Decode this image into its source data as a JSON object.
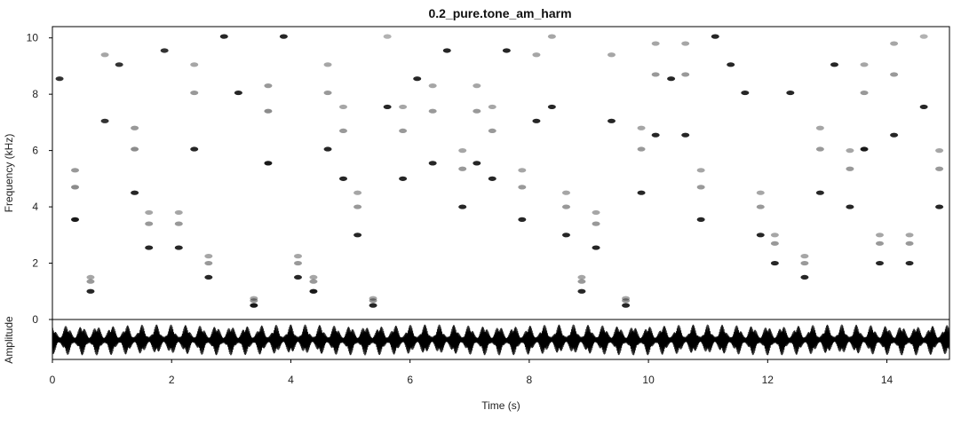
{
  "chart_data": {
    "type": "scatter",
    "title": "0.2_pure.tone_am_harm",
    "xlabel": "Time (s)",
    "ylabel": "Frequency (kHz)",
    "ylabel_waveform": "Amplitude",
    "xlim": [
      0,
      15.05
    ],
    "ylim": [
      0,
      10.4
    ],
    "xticks": [
      0,
      2,
      4,
      6,
      8,
      10,
      12,
      14
    ],
    "yticks": [
      0,
      2,
      4,
      6,
      8,
      10
    ],
    "grid": false,
    "legend": "none",
    "colors": {
      "spectrogram": "#000000",
      "waveform": "#000000",
      "background": "#ffffff"
    },
    "series": [
      {
        "values": [
          {
            "x": 0.12,
            "y": 8.55,
            "i": 0.8
          },
          {
            "x": 0.38,
            "y": 3.55,
            "i": 0.9
          },
          {
            "x": 0.38,
            "y": 4.7,
            "i": 0.45
          },
          {
            "x": 0.38,
            "y": 5.3,
            "i": 0.4
          },
          {
            "x": 0.64,
            "y": 1.0,
            "i": 0.85
          },
          {
            "x": 0.64,
            "y": 1.35,
            "i": 0.4
          },
          {
            "x": 0.64,
            "y": 1.5,
            "i": 0.35
          },
          {
            "x": 0.88,
            "y": 7.05,
            "i": 0.8
          },
          {
            "x": 0.88,
            "y": 9.4,
            "i": 0.35
          },
          {
            "x": 1.12,
            "y": 9.05,
            "i": 0.8
          },
          {
            "x": 1.38,
            "y": 4.5,
            "i": 0.85
          },
          {
            "x": 1.38,
            "y": 6.05,
            "i": 0.45
          },
          {
            "x": 1.38,
            "y": 6.8,
            "i": 0.4
          },
          {
            "x": 1.62,
            "y": 2.55,
            "i": 0.85
          },
          {
            "x": 1.62,
            "y": 3.4,
            "i": 0.4
          },
          {
            "x": 1.62,
            "y": 3.8,
            "i": 0.35
          },
          {
            "x": 1.88,
            "y": 9.55,
            "i": 0.8
          },
          {
            "x": 2.12,
            "y": 2.55,
            "i": 0.85
          },
          {
            "x": 2.12,
            "y": 3.4,
            "i": 0.4
          },
          {
            "x": 2.12,
            "y": 3.8,
            "i": 0.35
          },
          {
            "x": 2.38,
            "y": 6.05,
            "i": 0.85
          },
          {
            "x": 2.38,
            "y": 8.05,
            "i": 0.4
          },
          {
            "x": 2.38,
            "y": 9.05,
            "i": 0.35
          },
          {
            "x": 2.62,
            "y": 1.5,
            "i": 0.85
          },
          {
            "x": 2.62,
            "y": 2.0,
            "i": 0.4
          },
          {
            "x": 2.62,
            "y": 2.25,
            "i": 0.35
          },
          {
            "x": 2.88,
            "y": 10.05,
            "i": 0.85
          },
          {
            "x": 3.12,
            "y": 8.05,
            "i": 0.85
          },
          {
            "x": 3.38,
            "y": 0.5,
            "i": 0.9
          },
          {
            "x": 3.38,
            "y": 0.67,
            "i": 0.4
          },
          {
            "x": 3.38,
            "y": 0.75,
            "i": 0.35
          },
          {
            "x": 3.62,
            "y": 5.55,
            "i": 0.9
          },
          {
            "x": 3.62,
            "y": 7.4,
            "i": 0.45
          },
          {
            "x": 3.62,
            "y": 8.3,
            "i": 0.4
          },
          {
            "x": 3.88,
            "y": 10.05,
            "i": 0.85
          },
          {
            "x": 4.12,
            "y": 1.5,
            "i": 0.85
          },
          {
            "x": 4.12,
            "y": 2.0,
            "i": 0.4
          },
          {
            "x": 4.12,
            "y": 2.25,
            "i": 0.35
          },
          {
            "x": 4.38,
            "y": 1.0,
            "i": 0.9
          },
          {
            "x": 4.38,
            "y": 1.35,
            "i": 0.4
          },
          {
            "x": 4.38,
            "y": 1.5,
            "i": 0.35
          },
          {
            "x": 4.62,
            "y": 6.05,
            "i": 0.85
          },
          {
            "x": 4.62,
            "y": 8.05,
            "i": 0.4
          },
          {
            "x": 4.62,
            "y": 9.05,
            "i": 0.35
          },
          {
            "x": 4.88,
            "y": 5.0,
            "i": 0.85
          },
          {
            "x": 4.88,
            "y": 6.7,
            "i": 0.4
          },
          {
            "x": 4.88,
            "y": 7.55,
            "i": 0.35
          },
          {
            "x": 5.12,
            "y": 3.0,
            "i": 0.85
          },
          {
            "x": 5.12,
            "y": 4.0,
            "i": 0.4
          },
          {
            "x": 5.12,
            "y": 4.5,
            "i": 0.35
          },
          {
            "x": 5.38,
            "y": 0.5,
            "i": 0.85
          },
          {
            "x": 5.38,
            "y": 0.67,
            "i": 0.4
          },
          {
            "x": 5.38,
            "y": 0.75,
            "i": 0.35
          },
          {
            "x": 5.62,
            "y": 7.55,
            "i": 0.85
          },
          {
            "x": 5.62,
            "y": 10.05,
            "i": 0.3
          },
          {
            "x": 5.88,
            "y": 5.0,
            "i": 0.85
          },
          {
            "x": 5.88,
            "y": 6.7,
            "i": 0.4
          },
          {
            "x": 5.88,
            "y": 7.55,
            "i": 0.35
          },
          {
            "x": 6.12,
            "y": 8.55,
            "i": 0.85
          },
          {
            "x": 6.38,
            "y": 5.55,
            "i": 0.85
          },
          {
            "x": 6.38,
            "y": 7.4,
            "i": 0.4
          },
          {
            "x": 6.38,
            "y": 8.3,
            "i": 0.35
          },
          {
            "x": 6.62,
            "y": 9.55,
            "i": 0.85
          },
          {
            "x": 6.88,
            "y": 4.0,
            "i": 0.85
          },
          {
            "x": 6.88,
            "y": 5.35,
            "i": 0.4
          },
          {
            "x": 6.88,
            "y": 6.0,
            "i": 0.35
          },
          {
            "x": 7.12,
            "y": 5.55,
            "i": 0.85
          },
          {
            "x": 7.12,
            "y": 7.4,
            "i": 0.4
          },
          {
            "x": 7.12,
            "y": 8.3,
            "i": 0.35
          },
          {
            "x": 7.38,
            "y": 5.0,
            "i": 0.85
          },
          {
            "x": 7.38,
            "y": 6.7,
            "i": 0.4
          },
          {
            "x": 7.38,
            "y": 7.55,
            "i": 0.35
          },
          {
            "x": 7.62,
            "y": 9.55,
            "i": 0.85
          },
          {
            "x": 7.88,
            "y": 3.55,
            "i": 0.85
          },
          {
            "x": 7.88,
            "y": 4.7,
            "i": 0.4
          },
          {
            "x": 7.88,
            "y": 5.3,
            "i": 0.35
          },
          {
            "x": 8.12,
            "y": 7.05,
            "i": 0.85
          },
          {
            "x": 8.12,
            "y": 9.4,
            "i": 0.35
          },
          {
            "x": 8.38,
            "y": 7.55,
            "i": 0.85
          },
          {
            "x": 8.38,
            "y": 10.05,
            "i": 0.35
          },
          {
            "x": 8.62,
            "y": 3.0,
            "i": 0.85
          },
          {
            "x": 8.62,
            "y": 4.0,
            "i": 0.4
          },
          {
            "x": 8.62,
            "y": 4.5,
            "i": 0.35
          },
          {
            "x": 8.88,
            "y": 1.0,
            "i": 0.85
          },
          {
            "x": 8.88,
            "y": 1.35,
            "i": 0.4
          },
          {
            "x": 8.88,
            "y": 1.5,
            "i": 0.35
          },
          {
            "x": 9.12,
            "y": 2.55,
            "i": 0.85
          },
          {
            "x": 9.12,
            "y": 3.4,
            "i": 0.4
          },
          {
            "x": 9.12,
            "y": 3.8,
            "i": 0.35
          },
          {
            "x": 9.38,
            "y": 7.05,
            "i": 0.85
          },
          {
            "x": 9.38,
            "y": 9.4,
            "i": 0.35
          },
          {
            "x": 9.62,
            "y": 0.5,
            "i": 0.85
          },
          {
            "x": 9.62,
            "y": 0.67,
            "i": 0.4
          },
          {
            "x": 9.62,
            "y": 0.75,
            "i": 0.35
          },
          {
            "x": 9.88,
            "y": 4.5,
            "i": 0.85
          },
          {
            "x": 9.88,
            "y": 6.05,
            "i": 0.4
          },
          {
            "x": 9.88,
            "y": 6.8,
            "i": 0.35
          },
          {
            "x": 10.12,
            "y": 6.55,
            "i": 0.85
          },
          {
            "x": 10.12,
            "y": 8.7,
            "i": 0.4
          },
          {
            "x": 10.12,
            "y": 9.8,
            "i": 0.35
          },
          {
            "x": 10.38,
            "y": 8.55,
            "i": 0.85
          },
          {
            "x": 10.62,
            "y": 6.55,
            "i": 0.85
          },
          {
            "x": 10.62,
            "y": 8.7,
            "i": 0.4
          },
          {
            "x": 10.62,
            "y": 9.8,
            "i": 0.35
          },
          {
            "x": 10.88,
            "y": 3.55,
            "i": 0.85
          },
          {
            "x": 10.88,
            "y": 4.7,
            "i": 0.4
          },
          {
            "x": 10.88,
            "y": 5.3,
            "i": 0.35
          },
          {
            "x": 11.12,
            "y": 10.05,
            "i": 0.85
          },
          {
            "x": 11.38,
            "y": 9.05,
            "i": 0.85
          },
          {
            "x": 11.62,
            "y": 8.05,
            "i": 0.85
          },
          {
            "x": 11.88,
            "y": 3.0,
            "i": 0.85
          },
          {
            "x": 11.88,
            "y": 4.0,
            "i": 0.4
          },
          {
            "x": 11.88,
            "y": 4.5,
            "i": 0.35
          },
          {
            "x": 12.12,
            "y": 2.0,
            "i": 0.85
          },
          {
            "x": 12.12,
            "y": 2.7,
            "i": 0.4
          },
          {
            "x": 12.12,
            "y": 3.0,
            "i": 0.35
          },
          {
            "x": 12.38,
            "y": 8.05,
            "i": 0.85
          },
          {
            "x": 12.62,
            "y": 1.5,
            "i": 0.85
          },
          {
            "x": 12.62,
            "y": 2.0,
            "i": 0.4
          },
          {
            "x": 12.62,
            "y": 2.25,
            "i": 0.35
          },
          {
            "x": 12.88,
            "y": 4.5,
            "i": 0.85
          },
          {
            "x": 12.88,
            "y": 6.05,
            "i": 0.4
          },
          {
            "x": 12.88,
            "y": 6.8,
            "i": 0.35
          },
          {
            "x": 13.12,
            "y": 9.05,
            "i": 0.85
          },
          {
            "x": 13.38,
            "y": 4.0,
            "i": 0.85
          },
          {
            "x": 13.38,
            "y": 5.35,
            "i": 0.4
          },
          {
            "x": 13.38,
            "y": 6.0,
            "i": 0.35
          },
          {
            "x": 13.62,
            "y": 6.05,
            "i": 0.9
          },
          {
            "x": 13.62,
            "y": 8.05,
            "i": 0.4
          },
          {
            "x": 13.62,
            "y": 9.05,
            "i": 0.35
          },
          {
            "x": 13.88,
            "y": 2.0,
            "i": 0.85
          },
          {
            "x": 13.88,
            "y": 2.7,
            "i": 0.4
          },
          {
            "x": 13.88,
            "y": 3.0,
            "i": 0.35
          },
          {
            "x": 14.12,
            "y": 6.55,
            "i": 0.85
          },
          {
            "x": 14.12,
            "y": 8.7,
            "i": 0.4
          },
          {
            "x": 14.12,
            "y": 9.8,
            "i": 0.35
          },
          {
            "x": 14.38,
            "y": 2.0,
            "i": 0.85
          },
          {
            "x": 14.38,
            "y": 2.7,
            "i": 0.4
          },
          {
            "x": 14.38,
            "y": 3.0,
            "i": 0.35
          },
          {
            "x": 14.62,
            "y": 7.55,
            "i": 0.85
          },
          {
            "x": 14.62,
            "y": 10.05,
            "i": 0.3
          },
          {
            "x": 14.88,
            "y": 4.0,
            "i": 0.85
          },
          {
            "x": 14.88,
            "y": 5.35,
            "i": 0.4
          },
          {
            "x": 14.88,
            "y": 6.0,
            "i": 0.35
          }
        ]
      }
    ],
    "waveform": {
      "burst_period": 0.25,
      "burst_start": 0.12,
      "amplitude": 0.85
    }
  }
}
